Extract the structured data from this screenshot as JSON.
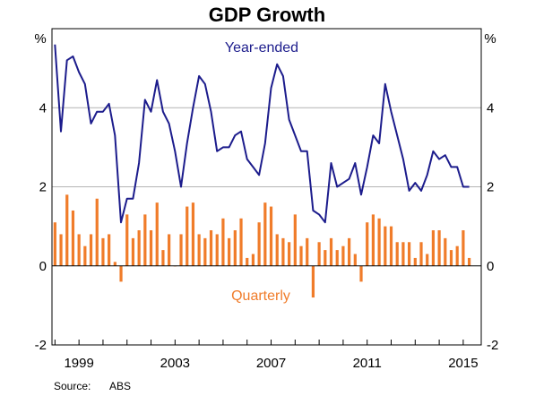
{
  "chart_data": {
    "type": "bar+line",
    "title": "GDP Growth",
    "unit_left": "%",
    "unit_right": "%",
    "ylim": [
      -2,
      6
    ],
    "yticks": [
      -2,
      0,
      2,
      4
    ],
    "x_tick_labels": [
      "1999",
      "2003",
      "2007",
      "2011",
      "2015"
    ],
    "x_tick_years": [
      1999,
      2003,
      2007,
      2011,
      2015
    ],
    "x_range": [
      1997.875,
      2015.75
    ],
    "grid_values": [
      2,
      4
    ],
    "source_label": "Source:",
    "source_value": "ABS",
    "colors": {
      "line": "#1c1c8c",
      "bar": "#f07c2a",
      "grid": "#b4b4b4",
      "axis": "#000000"
    },
    "series": [
      {
        "name": "Year-ended",
        "type": "line",
        "x": [
          1998.0,
          1998.25,
          1998.5,
          1998.75,
          1999.0,
          1999.25,
          1999.5,
          1999.75,
          2000.0,
          2000.25,
          2000.5,
          2000.75,
          2001.0,
          2001.25,
          2001.5,
          2001.75,
          2002.0,
          2002.25,
          2002.5,
          2002.75,
          2003.0,
          2003.25,
          2003.5,
          2003.75,
          2004.0,
          2004.25,
          2004.5,
          2004.75,
          2005.0,
          2005.25,
          2005.5,
          2005.75,
          2006.0,
          2006.25,
          2006.5,
          2006.75,
          2007.0,
          2007.25,
          2007.5,
          2007.75,
          2008.0,
          2008.25,
          2008.5,
          2008.75,
          2009.0,
          2009.25,
          2009.5,
          2009.75,
          2010.0,
          2010.25,
          2010.5,
          2010.75,
          2011.0,
          2011.25,
          2011.5,
          2011.75,
          2012.0,
          2012.25,
          2012.5,
          2012.75,
          2013.0,
          2013.25,
          2013.5,
          2013.75,
          2014.0,
          2014.25,
          2014.5,
          2014.75,
          2015.0,
          2015.25
        ],
        "values": [
          5.6,
          3.4,
          5.2,
          5.3,
          4.9,
          4.6,
          3.6,
          3.9,
          3.9,
          4.1,
          3.3,
          1.1,
          1.7,
          1.7,
          2.6,
          4.2,
          3.9,
          4.7,
          3.9,
          3.6,
          2.9,
          2.0,
          3.1,
          4.0,
          4.8,
          4.6,
          3.9,
          2.9,
          3.0,
          3.0,
          3.3,
          3.4,
          2.7,
          2.5,
          2.3,
          3.1,
          4.5,
          5.1,
          4.8,
          3.7,
          3.3,
          2.9,
          2.9,
          1.4,
          1.3,
          1.1,
          2.6,
          2.0,
          2.1,
          2.2,
          2.6,
          1.8,
          2.5,
          3.3,
          3.1,
          4.6,
          3.9,
          3.3,
          2.7,
          1.9,
          2.1,
          1.9,
          2.3,
          2.9,
          2.7,
          2.8,
          2.5,
          2.5,
          2.0,
          2.0
        ]
      },
      {
        "name": "Quarterly",
        "type": "bar",
        "x": [
          1998.0,
          1998.25,
          1998.5,
          1998.75,
          1999.0,
          1999.25,
          1999.5,
          1999.75,
          2000.0,
          2000.25,
          2000.5,
          2000.75,
          2001.0,
          2001.25,
          2001.5,
          2001.75,
          2002.0,
          2002.25,
          2002.5,
          2002.75,
          2003.0,
          2003.25,
          2003.5,
          2003.75,
          2004.0,
          2004.25,
          2004.5,
          2004.75,
          2005.0,
          2005.25,
          2005.5,
          2005.75,
          2006.0,
          2006.25,
          2006.5,
          2006.75,
          2007.0,
          2007.25,
          2007.5,
          2007.75,
          2008.0,
          2008.25,
          2008.5,
          2008.75,
          2009.0,
          2009.25,
          2009.5,
          2009.75,
          2010.0,
          2010.25,
          2010.5,
          2010.75,
          2011.0,
          2011.25,
          2011.5,
          2011.75,
          2012.0,
          2012.25,
          2012.5,
          2012.75,
          2013.0,
          2013.25,
          2013.5,
          2013.75,
          2014.0,
          2014.25,
          2014.5,
          2014.75,
          2015.0,
          2015.25
        ],
        "values": [
          1.1,
          0.8,
          1.8,
          1.4,
          0.8,
          0.5,
          0.8,
          1.7,
          0.7,
          0.8,
          0.1,
          -0.4,
          1.3,
          0.7,
          0.9,
          1.3,
          0.9,
          1.6,
          0.4,
          0.8,
          0.0,
          0.8,
          1.5,
          1.6,
          0.8,
          0.7,
          0.9,
          0.8,
          1.2,
          0.7,
          0.9,
          1.2,
          0.2,
          0.3,
          1.1,
          1.6,
          1.5,
          0.8,
          0.7,
          0.6,
          1.3,
          0.5,
          0.7,
          -0.8,
          0.6,
          0.4,
          0.7,
          0.4,
          0.5,
          0.7,
          0.3,
          -0.4,
          1.1,
          1.3,
          1.2,
          1.0,
          1.0,
          0.6,
          0.6,
          0.6,
          0.2,
          0.6,
          0.3,
          0.9,
          0.9,
          0.7,
          0.4,
          0.5,
          0.9,
          0.2
        ]
      }
    ]
  }
}
